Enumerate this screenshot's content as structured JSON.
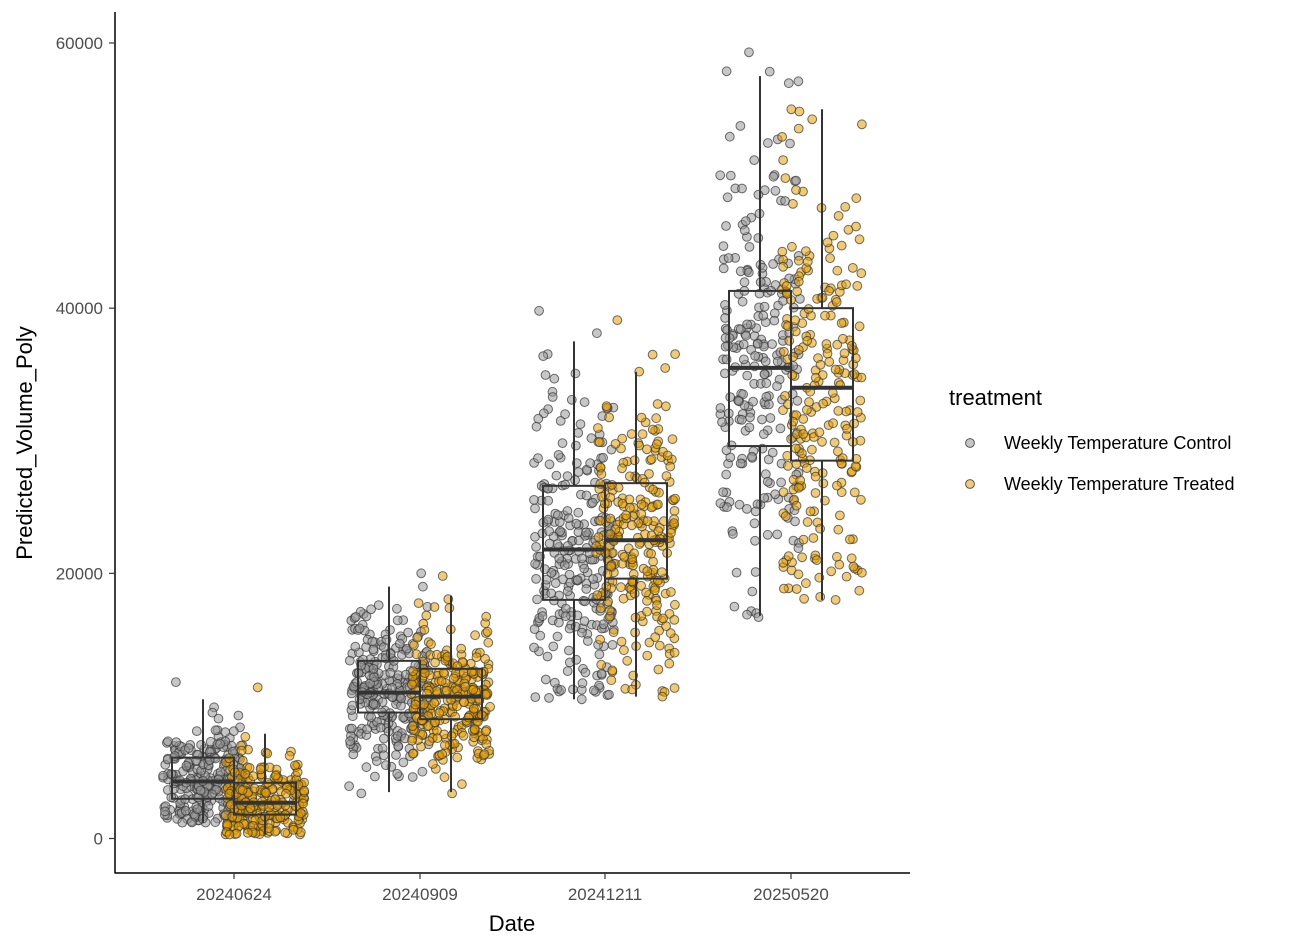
{
  "chart_data": {
    "type": "boxplot",
    "xlabel": "Date",
    "ylabel": "Predicted_Volume_Poly",
    "ylim": [
      -2600,
      62300
    ],
    "y_ticks": [
      0,
      20000,
      40000,
      60000
    ],
    "y_tick_labels": [
      "0",
      "20000",
      "40000",
      "60000"
    ],
    "categories": [
      "20240624",
      "20240909",
      "20241211",
      "20250520"
    ],
    "grid": false,
    "legend": {
      "title": "treatment",
      "placement": "right"
    },
    "series": [
      {
        "name": "Weekly Temperature Control",
        "color": "#999999",
        "boxes": [
          {
            "whisker_low": 1200,
            "q1": 3000,
            "median": 4300,
            "q3": 6100,
            "whisker_high": 10500,
            "n": 260,
            "min": 1200,
            "max": 11800
          },
          {
            "whisker_low": 3500,
            "q1": 9500,
            "median": 11000,
            "q3": 13400,
            "whisker_high": 19000,
            "n": 270,
            "min": 3400,
            "max": 20000
          },
          {
            "whisker_low": 10500,
            "q1": 18000,
            "median": 21800,
            "q3": 26600,
            "whisker_high": 37500,
            "n": 260,
            "min": 10500,
            "max": 39800
          },
          {
            "whisker_low": 16800,
            "q1": 29600,
            "median": 35500,
            "q3": 41300,
            "whisker_high": 57500,
            "n": 240,
            "min": 16700,
            "max": 59300
          }
        ]
      },
      {
        "name": "Weekly Temperature Treated",
        "color": "#E69F00",
        "boxes": [
          {
            "whisker_low": 300,
            "q1": 1800,
            "median": 2700,
            "q3": 4200,
            "whisker_high": 7900,
            "n": 260,
            "min": 300,
            "max": 11400
          },
          {
            "whisker_low": 3500,
            "q1": 9000,
            "median": 10700,
            "q3": 12800,
            "whisker_high": 18300,
            "n": 270,
            "min": 3400,
            "max": 19800
          },
          {
            "whisker_low": 10700,
            "q1": 19600,
            "median": 22500,
            "q3": 26800,
            "whisker_high": 35200,
            "n": 260,
            "min": 10700,
            "max": 39100
          },
          {
            "whisker_low": 18000,
            "q1": 28500,
            "median": 34000,
            "q3": 40000,
            "whisker_high": 55000,
            "n": 240,
            "min": 18000,
            "max": 55000
          }
        ]
      }
    ]
  }
}
